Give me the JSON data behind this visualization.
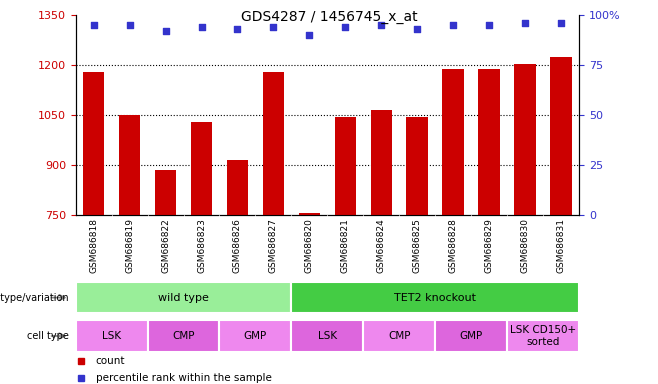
{
  "title": "GDS4287 / 1456745_x_at",
  "samples": [
    "GSM686818",
    "GSM686819",
    "GSM686822",
    "GSM686823",
    "GSM686826",
    "GSM686827",
    "GSM686820",
    "GSM686821",
    "GSM686824",
    "GSM686825",
    "GSM686828",
    "GSM686829",
    "GSM686830",
    "GSM686831"
  ],
  "counts": [
    1180,
    1050,
    885,
    1030,
    915,
    1180,
    755,
    1045,
    1065,
    1045,
    1190,
    1190,
    1205,
    1225
  ],
  "percentile_ranks": [
    95,
    95,
    92,
    94,
    93,
    94,
    90,
    94,
    95,
    93,
    95,
    95,
    96,
    96
  ],
  "ylim_left": [
    750,
    1350
  ],
  "ylim_right": [
    0,
    100
  ],
  "yticks_left": [
    750,
    900,
    1050,
    1200,
    1350
  ],
  "yticks_right": [
    0,
    25,
    50,
    75,
    100
  ],
  "bar_color": "#cc0000",
  "dot_color": "#3333cc",
  "bar_width": 0.6,
  "genotype_groups": [
    {
      "label": "wild type",
      "start": 0,
      "end": 6,
      "color": "#99ee99"
    },
    {
      "label": "TET2 knockout",
      "start": 6,
      "end": 14,
      "color": "#44cc44"
    }
  ],
  "cell_type_groups": [
    {
      "label": "LSK",
      "start": 0,
      "end": 2,
      "color": "#ee88ee"
    },
    {
      "label": "CMP",
      "start": 2,
      "end": 4,
      "color": "#dd66dd"
    },
    {
      "label": "GMP",
      "start": 4,
      "end": 6,
      "color": "#ee88ee"
    },
    {
      "label": "LSK",
      "start": 6,
      "end": 8,
      "color": "#dd66dd"
    },
    {
      "label": "CMP",
      "start": 8,
      "end": 10,
      "color": "#ee88ee"
    },
    {
      "label": "GMP",
      "start": 10,
      "end": 12,
      "color": "#dd66dd"
    },
    {
      "label": "LSK CD150+\nsorted",
      "start": 12,
      "end": 14,
      "color": "#ee88ee"
    }
  ],
  "legend_count_color": "#cc0000",
  "legend_dot_color": "#3333cc",
  "tick_label_color_left": "#cc0000",
  "tick_label_color_right": "#3333cc",
  "gridline_pcts": [
    25,
    50,
    75
  ],
  "sample_label_bg": "#cccccc"
}
